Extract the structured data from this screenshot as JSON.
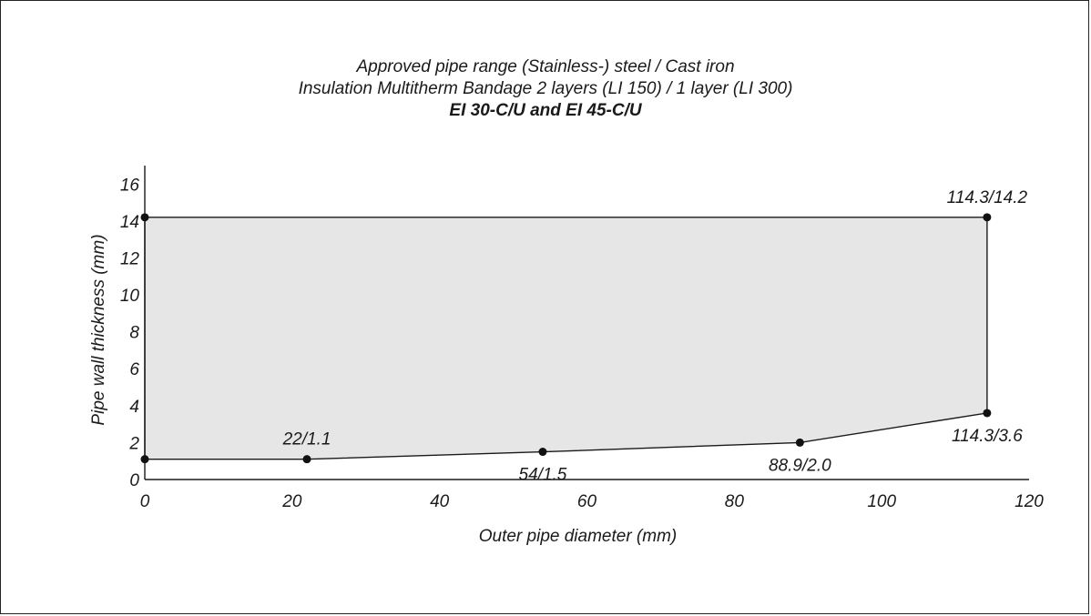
{
  "chart_data": {
    "type": "area",
    "title": [
      "Approved pipe range (Stainless-) steel / Cast iron",
      "Insulation Multitherm Bandage 2 layers (LI 150) / 1 layer (LI 300)",
      "EI 30-C/U and EI 45-C/U"
    ],
    "xlabel": "Outer pipe diameter (mm)",
    "ylabel": "Pipe wall thickness (mm)",
    "xlim": [
      0,
      120
    ],
    "ylim": [
      0,
      17
    ],
    "xticks": [
      0,
      20,
      40,
      60,
      80,
      100,
      120
    ],
    "yticks": [
      0,
      2,
      4,
      6,
      8,
      10,
      12,
      14,
      16
    ],
    "grid": false,
    "fill_color": "#e6e6e6",
    "line_color": "#1a1a1a",
    "polygon": [
      {
        "x": 0,
        "y": 1.1
      },
      {
        "x": 22,
        "y": 1.1
      },
      {
        "x": 54,
        "y": 1.5
      },
      {
        "x": 88.9,
        "y": 2.0
      },
      {
        "x": 114.3,
        "y": 3.6
      },
      {
        "x": 114.3,
        "y": 14.2
      },
      {
        "x": 0,
        "y": 14.2
      }
    ],
    "points": [
      {
        "x": 0,
        "y": 1.1,
        "label": ""
      },
      {
        "x": 22,
        "y": 1.1,
        "label": "22/1.1",
        "pos": "above"
      },
      {
        "x": 54,
        "y": 1.5,
        "label": "54/1.5",
        "pos": "below"
      },
      {
        "x": 88.9,
        "y": 2.0,
        "label": "88.9/2.0",
        "pos": "below"
      },
      {
        "x": 114.3,
        "y": 3.6,
        "label": "114.3/3.6",
        "pos": "below"
      },
      {
        "x": 114.3,
        "y": 14.2,
        "label": "114.3/14.2",
        "pos": "above"
      },
      {
        "x": 0,
        "y": 14.2,
        "label": ""
      }
    ]
  }
}
